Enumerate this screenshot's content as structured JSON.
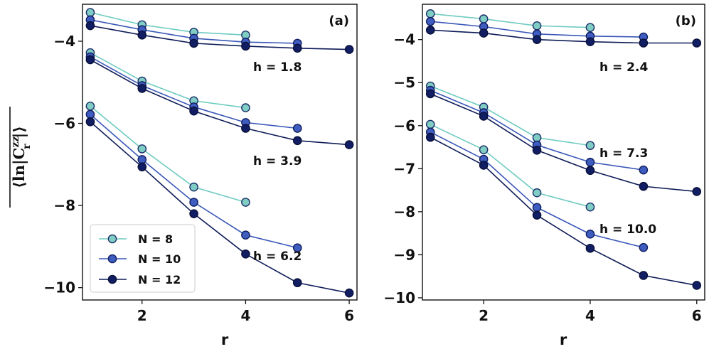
{
  "chart_data": [
    {
      "panel": "(a)",
      "type": "line",
      "xlabel": "r",
      "ylabel": "⟨ln|C_r^zz|⟩ (overlined)",
      "ylabel_parts": {
        "open": "⟨ln|C",
        "sup": "zz",
        "sub": "r",
        "close": "|⟩"
      },
      "xlim": [
        0.85,
        6.15
      ],
      "ylim": [
        -10.3,
        -3.1
      ],
      "xticks": [
        2,
        4,
        6
      ],
      "yticks": [
        -4,
        -6,
        -8,
        -10
      ],
      "xtick_labels": [
        "2",
        "4",
        "6"
      ],
      "ytick_labels": [
        "−4",
        "−6",
        "−8",
        "−10"
      ],
      "groups": [
        {
          "h_label": "h = 1.8",
          "series": [
            {
              "name": "N = 8",
              "x": [
                1,
                2,
                3,
                4
              ],
              "y": [
                -3.3,
                -3.6,
                -3.78,
                -3.85
              ]
            },
            {
              "name": "N = 10",
              "x": [
                1,
                2,
                3,
                4,
                5
              ],
              "y": [
                -3.48,
                -3.72,
                -3.93,
                -4.02,
                -4.05
              ]
            },
            {
              "name": "N = 12",
              "x": [
                1,
                2,
                3,
                4,
                5,
                6
              ],
              "y": [
                -3.62,
                -3.85,
                -4.05,
                -4.12,
                -4.17,
                -4.2
              ]
            }
          ]
        },
        {
          "h_label": "h = 3.9",
          "series": [
            {
              "name": "N = 8",
              "x": [
                1,
                2,
                3,
                4
              ],
              "y": [
                -4.28,
                -4.97,
                -5.45,
                -5.62
              ]
            },
            {
              "name": "N = 10",
              "x": [
                1,
                2,
                3,
                4,
                5
              ],
              "y": [
                -4.38,
                -5.08,
                -5.6,
                -5.98,
                -6.12
              ]
            },
            {
              "name": "N = 12",
              "x": [
                1,
                2,
                3,
                4,
                5,
                6
              ],
              "y": [
                -4.45,
                -5.15,
                -5.7,
                -6.12,
                -6.42,
                -6.52
              ]
            }
          ]
        },
        {
          "h_label": "h = 6.2",
          "series": [
            {
              "name": "N = 8",
              "x": [
                1,
                2,
                3,
                4
              ],
              "y": [
                -5.58,
                -6.62,
                -7.55,
                -7.92
              ]
            },
            {
              "name": "N = 10",
              "x": [
                1,
                2,
                3,
                4,
                5
              ],
              "y": [
                -5.78,
                -6.88,
                -7.92,
                -8.72,
                -9.03
              ]
            },
            {
              "name": "N = 12",
              "x": [
                1,
                2,
                3,
                4,
                5,
                6
              ],
              "y": [
                -5.96,
                -7.06,
                -8.2,
                -9.18,
                -9.88,
                -10.13
              ]
            }
          ]
        }
      ]
    },
    {
      "panel": "(b)",
      "type": "line",
      "xlabel": "r",
      "xlim": [
        0.85,
        6.15
      ],
      "ylim": [
        -10.05,
        -3.18
      ],
      "xticks": [
        2,
        4,
        6
      ],
      "yticks": [
        -4,
        -5,
        -6,
        -7,
        -8,
        -9,
        -10
      ],
      "xtick_labels": [
        "2",
        "4",
        "6"
      ],
      "ytick_labels": [
        "−4",
        "−5",
        "−6",
        "−7",
        "−8",
        "−9",
        "−10"
      ],
      "groups": [
        {
          "h_label": "h = 2.4",
          "series": [
            {
              "name": "N = 8",
              "x": [
                1,
                2,
                3,
                4
              ],
              "y": [
                -3.4,
                -3.52,
                -3.68,
                -3.72
              ]
            },
            {
              "name": "N = 10",
              "x": [
                1,
                2,
                3,
                4,
                5
              ],
              "y": [
                -3.58,
                -3.7,
                -3.87,
                -3.92,
                -3.94
              ]
            },
            {
              "name": "N = 12",
              "x": [
                1,
                2,
                3,
                4,
                5,
                6
              ],
              "y": [
                -3.78,
                -3.85,
                -4.0,
                -4.05,
                -4.08,
                -4.08
              ]
            }
          ]
        },
        {
          "h_label": "h = 7.3",
          "series": [
            {
              "name": "N = 8",
              "x": [
                1,
                2,
                3,
                4
              ],
              "y": [
                -5.08,
                -5.57,
                -6.28,
                -6.46
              ]
            },
            {
              "name": "N = 10",
              "x": [
                1,
                2,
                3,
                4,
                5
              ],
              "y": [
                -5.18,
                -5.7,
                -6.45,
                -6.85,
                -7.03
              ]
            },
            {
              "name": "N = 12",
              "x": [
                1,
                2,
                3,
                4,
                5,
                6
              ],
              "y": [
                -5.26,
                -5.78,
                -6.57,
                -7.04,
                -7.41,
                -7.53
              ]
            }
          ]
        },
        {
          "h_label": "h = 10.0",
          "series": [
            {
              "name": "N = 8",
              "x": [
                1,
                2,
                3,
                4
              ],
              "y": [
                -5.97,
                -6.56,
                -7.56,
                -7.89
              ]
            },
            {
              "name": "N = 10",
              "x": [
                1,
                2,
                3,
                4,
                5
              ],
              "y": [
                -6.15,
                -6.78,
                -7.9,
                -8.52,
                -8.83
              ]
            },
            {
              "name": "N = 12",
              "x": [
                1,
                2,
                3,
                4,
                5,
                6
              ],
              "y": [
                -6.27,
                -6.92,
                -8.08,
                -8.85,
                -9.48,
                -9.71
              ]
            }
          ]
        }
      ]
    }
  ],
  "legend": {
    "location": "lower-left of panel (a)",
    "entries": [
      {
        "name": "N = 8",
        "label": "N = 8"
      },
      {
        "name": "N = 10",
        "label": "N = 10"
      },
      {
        "name": "N = 12",
        "label": "N = 12"
      }
    ]
  },
  "colors": {
    "N = 8": {
      "line": "#6ecbc0",
      "fill": "#7fcdc3",
      "edge": "#1d2f6b"
    },
    "N = 10": {
      "line": "#3a57b8",
      "fill": "#3f5cc0",
      "edge": "#101f5e"
    },
    "N = 12": {
      "line": "#0e1b57",
      "fill": "#121e63",
      "edge": "#08103a"
    }
  }
}
